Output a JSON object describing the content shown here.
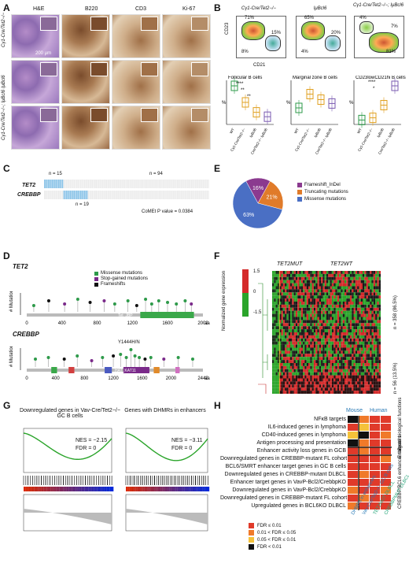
{
  "panel_letters": [
    "A",
    "B",
    "C",
    "D",
    "E",
    "F",
    "G",
    "H"
  ],
  "panelA": {
    "columns": [
      "H&E",
      "B220",
      "CD3",
      "Ki-67"
    ],
    "rows": [
      "Cγ1-Cre/Tet2−/−",
      "IμBcl6",
      "Cγ1-Cre/Tet2−/−; IμBcl6"
    ],
    "scale": "200 μm"
  },
  "panelB": {
    "facs_titles": [
      "Cγ1-Cre/Tet2−/−",
      "IμBcl6",
      "Cγ1-Cre/Tet2−/−; IμBcl6"
    ],
    "facs_pcts": [
      [
        "71%",
        "15%",
        "8%"
      ],
      [
        "65%",
        "20%",
        "4%"
      ],
      [
        "4%",
        "7%",
        "81%"
      ]
    ],
    "axis_y": "CD23",
    "axis_x": "CD21",
    "box_titles": [
      "Follicular B cells",
      "Marginal zone B cells",
      "CD23lowCD21hi B cells"
    ],
    "ylabel": "%",
    "xcats": [
      "WT",
      "Cγ1-Cre/Tet2−/−",
      "IμBcl6",
      "Cγ1-Cre/Tet2−/− IμBcl6"
    ],
    "sig": [
      "****",
      "**",
      "**",
      "****",
      "*"
    ]
  },
  "panelC": {
    "n15": "n = 15",
    "n19": "n = 19",
    "n94": "n = 94",
    "gene1": "TET2",
    "gene2": "CREBBP",
    "pval": "CoMEt P value = 0.0384"
  },
  "panelD": {
    "gene1": "TET2",
    "gene2": "CREBBP",
    "ylabel": "# Mutations",
    "legend": [
      "Missense mutations",
      "Stop-gained mutations",
      "Frameshifts"
    ],
    "colors": [
      "#2e9a4a",
      "#7a2a8a",
      "#111111"
    ],
    "tet2_ticks": [
      "0",
      "400",
      "800",
      "1200",
      "1600",
      "2002"
    ],
    "tet2_domain": "Tet_JBP",
    "crebbp_ticks": [
      "0",
      "400",
      "800",
      "1200",
      "1600",
      "2000",
      "2442"
    ],
    "crebbp_domain": "HAT_KAT11",
    "hotspot": "Y1444H/N",
    "unit": "aa"
  },
  "panelE": {
    "legend": [
      "Frameshift_InDel",
      "Truncating mutations",
      "Missense mutations"
    ],
    "colors": [
      "#8b3a8f",
      "#e07b2a",
      "#4a6fc4"
    ],
    "values": [
      16,
      21,
      63
    ],
    "labels": [
      "16%",
      "21%",
      "63%"
    ]
  },
  "panelF": {
    "group1": "TET2MUT",
    "group2": "TET2WT",
    "scale_label": "Normalized gene expression",
    "scale_ticks": [
      "1.5",
      "0",
      "-1.5"
    ],
    "n1": "n = 358",
    "p1": "(86.5%)",
    "n2": "n = 56",
    "p2": "(13.5%)"
  },
  "panelG": {
    "titles": [
      "Downregulated genes in Vav-Cre/Tet2−/− GC B cells",
      "Genes with DHMRs in enhancers"
    ],
    "stats": [
      [
        "NES = −2.15",
        "FDR = 0"
      ],
      [
        "NES = −3.11",
        "FDR = 0"
      ]
    ]
  },
  "panelH": {
    "headers": [
      "Mouse",
      "Human"
    ],
    "rows": [
      "NFκB targets",
      "IL6-induced genes in lymphoma",
      "CD40-induced genes in lymphoma",
      "Antigen processing and presentation",
      "Enhancer activity loss genes in GCB",
      "Downregulated genes in CREBBP-mutant FL cohort 1",
      "BCL6/SMRT enhancer target genes in GC B cells",
      "Downregulated genes in CREBBP-mutant DLBCL",
      "Enhancer target genes in VavP-Bcl2/CrebbpKO",
      "Downregulated genes in VavP-Bcl2/CrebbpKO",
      "Downregulated genes in CREBBP-mutant FL cohort 2",
      "Upregulated genes in BCL6KO DLBCL"
    ],
    "cols": [
      "DHMRs in enhancers",
      "Vav-Cre/Tet2−/− GC B cells",
      "TET2MUT DLBCL",
      "CREBBPMUT DLBCL"
    ],
    "cells": [
      [
        3,
        1,
        0,
        0
      ],
      [
        0,
        2,
        0,
        0
      ],
      [
        2,
        3,
        0,
        1
      ],
      [
        3,
        1,
        0,
        0
      ],
      [
        0,
        1,
        0,
        0
      ],
      [
        0,
        0,
        0,
        1
      ],
      [
        0,
        0,
        0,
        0
      ],
      [
        0,
        1,
        0,
        0
      ],
      [
        0,
        0,
        0,
        0
      ],
      [
        1,
        0,
        0,
        1
      ],
      [
        0,
        1,
        0,
        0
      ],
      [
        1,
        0,
        0,
        0
      ]
    ],
    "side_labels": [
      "B-cell biological functions",
      "Enhancers",
      "CREBBP/BCL6 enhancer targets"
    ],
    "legend": [
      "FDR ≤ 0.01",
      "0.01 < FDR ≤ 0.05",
      "0.05 < FDR ≤ 0.01",
      "FDR < 0.01"
    ],
    "legend_colors": [
      "#e03a2a",
      "#f07a2a",
      "#f5c23a",
      "#111111"
    ]
  }
}
